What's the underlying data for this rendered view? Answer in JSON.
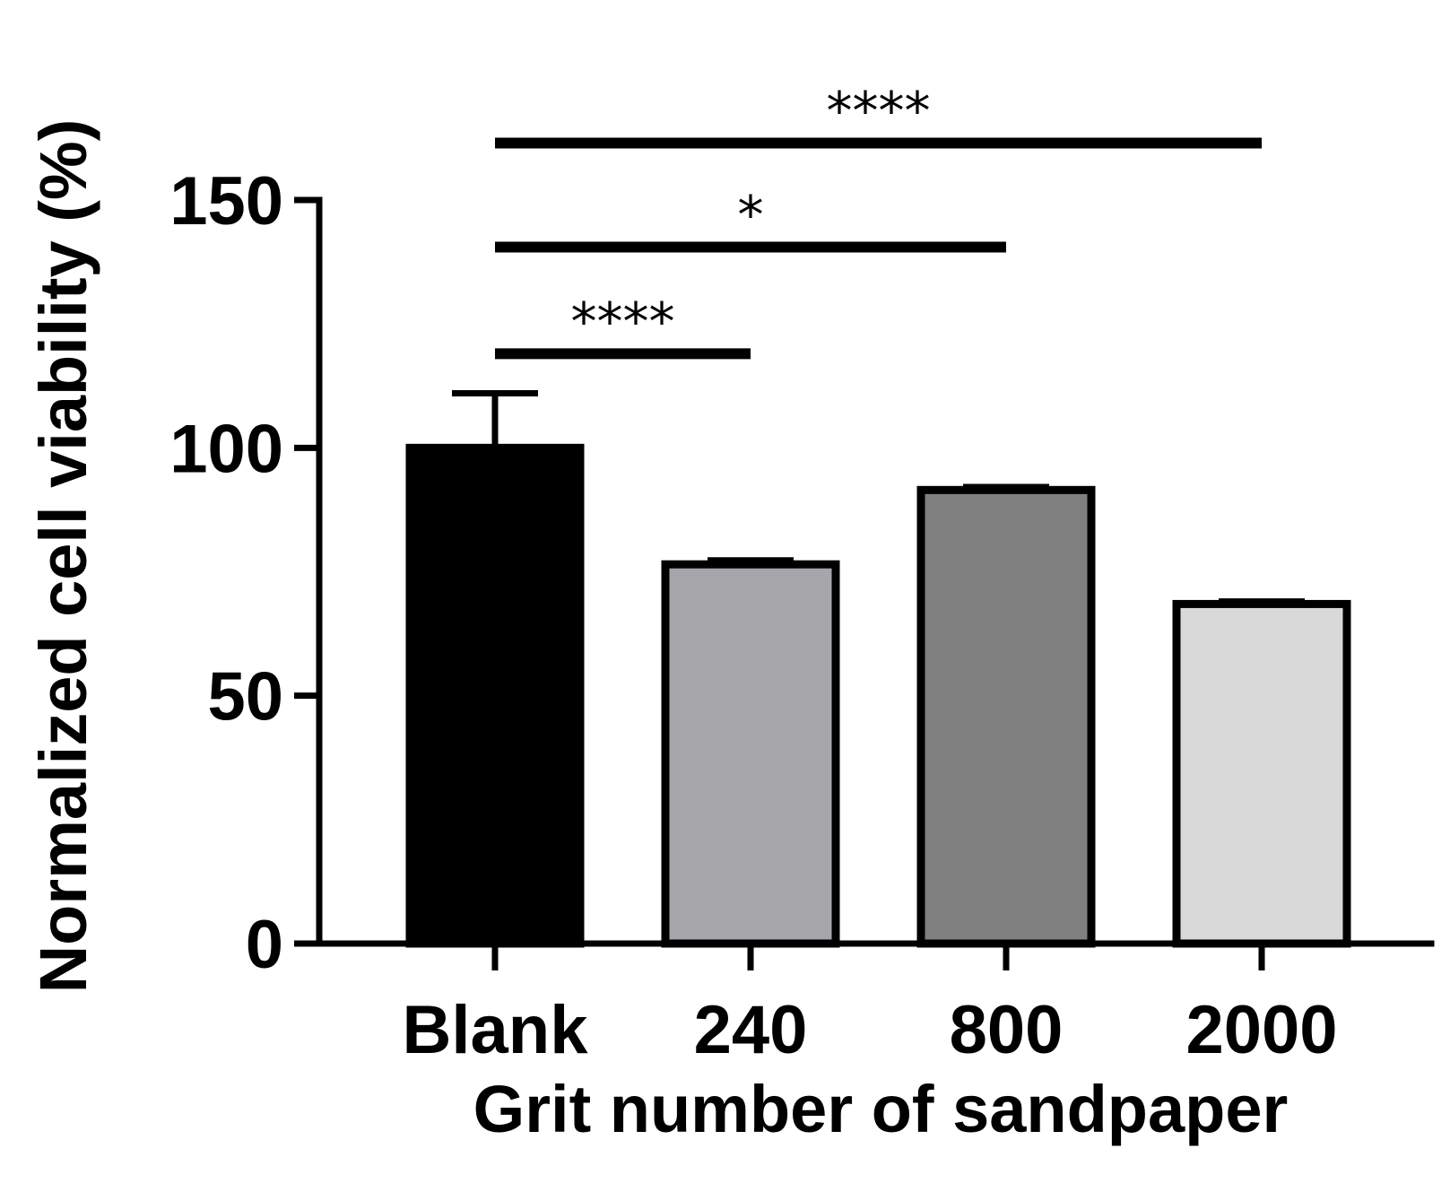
{
  "chart_data": {
    "type": "bar",
    "title": "",
    "xlabel": "Grit number of sandpaper",
    "ylabel": "Normalized cell viability (%)",
    "ylim": [
      0,
      150
    ],
    "yticks": [
      0,
      50,
      100,
      150
    ],
    "ytick_labels": [
      "0",
      "50",
      "100",
      "150"
    ],
    "categories": [
      "Blank",
      "240",
      "800",
      "2000"
    ],
    "values": [
      100,
      76.5,
      91.5,
      68.5
    ],
    "error": [
      11,
      0.8,
      0.6,
      0.5
    ],
    "bar_fill_colors": [
      "#000000",
      "#a6a6aa",
      "#808080",
      "#d9d9d9"
    ],
    "bar_edge_color": "#000000",
    "grid": false,
    "legend": "none",
    "significance": [
      {
        "from": "Blank",
        "to": "240",
        "label": "****",
        "y": 119
      },
      {
        "from": "Blank",
        "to": "800",
        "label": "*",
        "y": 140.5
      },
      {
        "from": "Blank",
        "to": "2000",
        "label": "****",
        "y": 161.5
      }
    ]
  }
}
